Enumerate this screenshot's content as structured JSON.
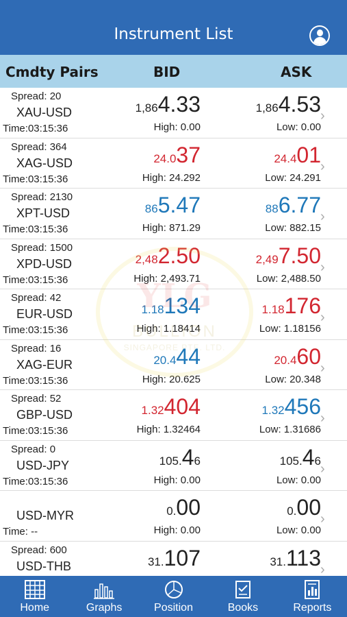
{
  "header": {
    "title": "Instrument List",
    "profile_icon": "user-circle-icon"
  },
  "columns": {
    "pairs": "Cmdty Pairs",
    "bid": "BID",
    "ask": "ASK"
  },
  "rows": [
    {
      "spread": "Spread: 20",
      "symbol": "XAU-USD",
      "time": "Time:03:15:36",
      "bid": {
        "pre": "1,86",
        "big": "4.33",
        "post": "",
        "color": "black"
      },
      "bid_hl": "High: 0.00",
      "ask": {
        "pre": "1,86",
        "big": "4.53",
        "post": "",
        "color": "black"
      },
      "ask_hl": "Low: 0.00"
    },
    {
      "spread": "Spread: 364",
      "symbol": "XAG-USD",
      "time": "Time:03:15:36",
      "bid": {
        "pre": "24.0",
        "big": "37",
        "post": "",
        "color": "red"
      },
      "bid_hl": "High: 24.292",
      "ask": {
        "pre": "24.4",
        "big": "01",
        "post": "",
        "color": "red"
      },
      "ask_hl": "Low: 24.291"
    },
    {
      "spread": "Spread: 2130",
      "symbol": "XPT-USD",
      "time": "Time:03:15:36",
      "bid": {
        "pre": "86",
        "big": "5.47",
        "post": "",
        "color": "blue"
      },
      "bid_hl": "High: 871.29",
      "ask": {
        "pre": "88",
        "big": "6.77",
        "post": "",
        "color": "blue"
      },
      "ask_hl": "Low: 882.15"
    },
    {
      "spread": "Spread: 1500",
      "symbol": "XPD-USD",
      "time": "Time:03:15:36",
      "bid": {
        "pre": "2,48",
        "big": "2.50",
        "post": "",
        "color": "red"
      },
      "bid_hl": "High: 2,493.71",
      "ask": {
        "pre": "2,49",
        "big": "7.50",
        "post": "",
        "color": "red"
      },
      "ask_hl": "Low: 2,488.50"
    },
    {
      "spread": "Spread: 42",
      "symbol": "EUR-USD",
      "time": "Time:03:15:36",
      "bid": {
        "pre": "1.18",
        "big": "134",
        "post": "",
        "color": "blue"
      },
      "bid_hl": "High: 1.18414",
      "ask": {
        "pre": "1.18",
        "big": "176",
        "post": "",
        "color": "red"
      },
      "ask_hl": "Low: 1.18156"
    },
    {
      "spread": "Spread: 16",
      "symbol": "XAG-EUR",
      "time": "Time:03:15:36",
      "bid": {
        "pre": "20.4",
        "big": "44",
        "post": "",
        "color": "blue"
      },
      "bid_hl": "High: 20.625",
      "ask": {
        "pre": "20.4",
        "big": "60",
        "post": "",
        "color": "red"
      },
      "ask_hl": "Low: 20.348"
    },
    {
      "spread": "Spread: 52",
      "symbol": "GBP-USD",
      "time": "Time:03:15:36",
      "bid": {
        "pre": "1.32",
        "big": "404",
        "post": "",
        "color": "red"
      },
      "bid_hl": "High: 1.32464",
      "ask": {
        "pre": "1.32",
        "big": "456",
        "post": "",
        "color": "blue"
      },
      "ask_hl": "Low: 1.31686"
    },
    {
      "spread": "Spread: 0",
      "symbol": "USD-JPY",
      "time": "Time:03:15:36",
      "bid": {
        "pre": "105.",
        "big": "4",
        "post": "6",
        "color": "black"
      },
      "bid_hl": "High: 0.00",
      "ask": {
        "pre": "105.",
        "big": "4",
        "post": "6",
        "color": "black"
      },
      "ask_hl": "Low: 0.00"
    },
    {
      "spread": "",
      "symbol": "USD-MYR",
      "time": "Time:     --",
      "bid": {
        "pre": "0.",
        "big": "00",
        "post": "",
        "color": "black"
      },
      "bid_hl": "High: 0.00",
      "ask": {
        "pre": "0.",
        "big": "00",
        "post": "",
        "color": "black"
      },
      "ask_hl": "Low: 0.00"
    },
    {
      "spread": "Spread: 600",
      "symbol": "USD-THB",
      "time": "",
      "bid": {
        "pre": "31.",
        "big": "107",
        "post": "",
        "color": "black"
      },
      "bid_hl": "",
      "ask": {
        "pre": "31.",
        "big": "113",
        "post": "",
        "color": "black"
      },
      "ask_hl": ""
    }
  ],
  "watermark": {
    "line1": "YLG",
    "line2": "BULLION",
    "line3": "SINGAPORE PTE. LTD."
  },
  "tabs": [
    {
      "label": "Home",
      "icon": "grid-icon"
    },
    {
      "label": "Graphs",
      "icon": "bar-chart-icon"
    },
    {
      "label": "Position",
      "icon": "pie-chart-icon"
    },
    {
      "label": "Books",
      "icon": "book-icon"
    },
    {
      "label": "Reports",
      "icon": "report-icon"
    }
  ]
}
